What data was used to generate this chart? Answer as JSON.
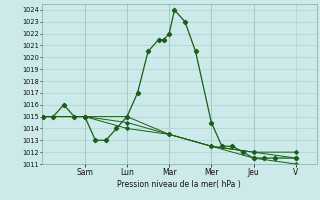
{
  "background_color": "#cceaea",
  "grid_color_major": "#aacccc",
  "grid_color_minor": "#bbdddd",
  "line_color": "#1a5e1a",
  "ylabel": "Pression niveau de la mer( hPa )",
  "ylim": [
    1011,
    1024.5
  ],
  "yticks": [
    1011,
    1012,
    1013,
    1014,
    1015,
    1016,
    1017,
    1018,
    1019,
    1020,
    1021,
    1022,
    1023,
    1024
  ],
  "day_labels": [
    "Sam",
    "Lun",
    "Mar",
    "Mer",
    "Jeu",
    "V"
  ],
  "day_positions": [
    2,
    4,
    6,
    8,
    10,
    12
  ],
  "xlim": [
    -0.05,
    13.0
  ],
  "series0_x": [
    0,
    0.5,
    1.0,
    1.5,
    2.0,
    2.5,
    3.0,
    3.5,
    4.0,
    4.5,
    5.0,
    5.5,
    5.75,
    6.0,
    6.25,
    6.75,
    7.25,
    8.0,
    8.5,
    9.0,
    9.5,
    10.0,
    10.5,
    11.0,
    12.0
  ],
  "series0_y": [
    1015,
    1015,
    1016,
    1015,
    1015,
    1013,
    1013,
    1014,
    1015,
    1017,
    1020.5,
    1021.5,
    1021.5,
    1022,
    1024,
    1023,
    1020.5,
    1014.5,
    1012.5,
    1012.5,
    1012,
    1011.5,
    1011.5,
    1011.5,
    1011.5
  ],
  "series1_x": [
    0,
    2,
    4,
    6,
    8,
    10,
    12
  ],
  "series1_y": [
    1015,
    1015,
    1015,
    1013.5,
    1012.5,
    1012,
    1012
  ],
  "series2_x": [
    0,
    2,
    4,
    6,
    8,
    10,
    12
  ],
  "series2_y": [
    1015,
    1015,
    1014.5,
    1013.5,
    1012.5,
    1012,
    1011.5
  ],
  "series3_x": [
    0,
    2,
    4,
    6,
    8,
    10,
    12
  ],
  "series3_y": [
    1015,
    1015,
    1014,
    1013.5,
    1012.5,
    1011.5,
    1011
  ]
}
